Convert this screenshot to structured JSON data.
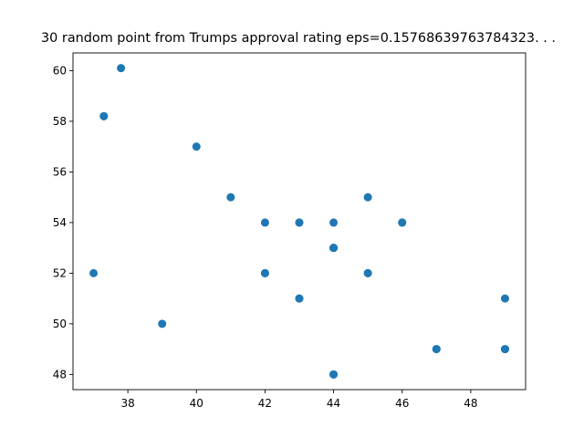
{
  "chart_data": {
    "type": "scatter",
    "title": "30 random point from Trumps approval rating eps=0.15768639763784323. . .",
    "xlabel": "",
    "ylabel": "",
    "xlim": [
      36.4,
      49.6
    ],
    "ylim": [
      47.4,
      60.7
    ],
    "xticks": [
      38,
      40,
      42,
      44,
      46,
      48
    ],
    "yticks": [
      48,
      50,
      52,
      54,
      56,
      58,
      60
    ],
    "grid": false,
    "marker_color": "#1f77b4",
    "points": [
      {
        "x": 37.8,
        "y": 60.1
      },
      {
        "x": 37.3,
        "y": 58.2
      },
      {
        "x": 37.3,
        "y": 58.2
      },
      {
        "x": 40.0,
        "y": 57.0
      },
      {
        "x": 41.0,
        "y": 55.0
      },
      {
        "x": 45.0,
        "y": 55.0
      },
      {
        "x": 42.0,
        "y": 54.0
      },
      {
        "x": 43.0,
        "y": 54.0
      },
      {
        "x": 43.0,
        "y": 54.0
      },
      {
        "x": 44.0,
        "y": 54.0
      },
      {
        "x": 46.0,
        "y": 54.0
      },
      {
        "x": 46.0,
        "y": 54.0
      },
      {
        "x": 44.0,
        "y": 53.0
      },
      {
        "x": 44.0,
        "y": 53.0
      },
      {
        "x": 44.0,
        "y": 53.0
      },
      {
        "x": 37.0,
        "y": 52.0
      },
      {
        "x": 42.0,
        "y": 52.0
      },
      {
        "x": 42.0,
        "y": 52.0
      },
      {
        "x": 45.0,
        "y": 52.0
      },
      {
        "x": 45.0,
        "y": 52.0
      },
      {
        "x": 43.0,
        "y": 51.0
      },
      {
        "x": 43.0,
        "y": 51.0
      },
      {
        "x": 49.0,
        "y": 51.0
      },
      {
        "x": 39.0,
        "y": 50.0
      },
      {
        "x": 47.0,
        "y": 49.0
      },
      {
        "x": 47.0,
        "y": 49.0
      },
      {
        "x": 49.0,
        "y": 49.0
      },
      {
        "x": 49.0,
        "y": 49.0
      },
      {
        "x": 44.0,
        "y": 48.0
      },
      {
        "x": 44.0,
        "y": 48.0
      }
    ]
  }
}
